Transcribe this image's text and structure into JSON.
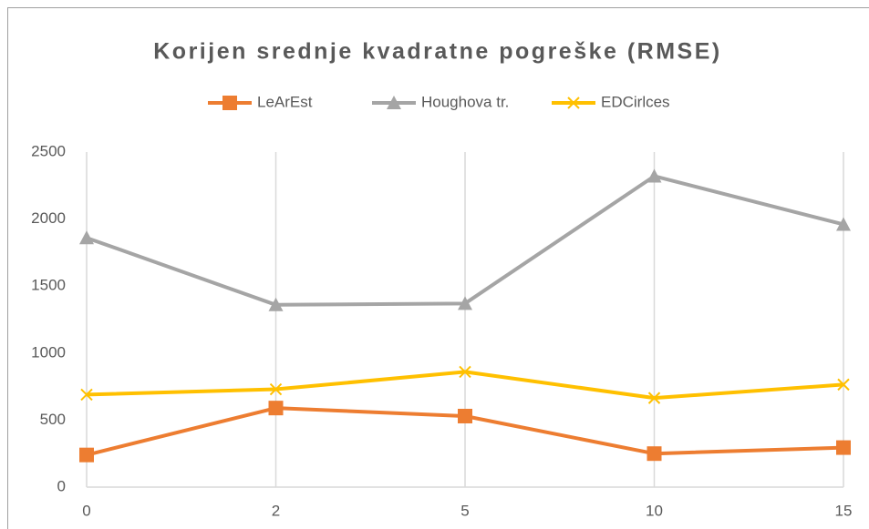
{
  "chart_data": {
    "type": "line",
    "title": "Korijen srednje kvadratne pogreške (RMSE)",
    "categories": [
      "0",
      "2",
      "5",
      "10",
      "15"
    ],
    "series": [
      {
        "name": "LeArEst",
        "color": "#ed7d31",
        "marker": "square",
        "values": [
          240,
          590,
          530,
          250,
          295
        ]
      },
      {
        "name": "Houghova tr.",
        "color": "#a5a5a5",
        "marker": "triangle",
        "values": [
          1860,
          1360,
          1370,
          2320,
          1960
        ]
      },
      {
        "name": "EDCirlces",
        "color": "#ffc000",
        "marker": "x",
        "values": [
          690,
          730,
          860,
          665,
          765
        ]
      }
    ],
    "ylim": [
      0,
      2500
    ],
    "yticks": [
      0,
      500,
      1000,
      1500,
      2000,
      2500
    ],
    "grid": true,
    "legend": "top"
  }
}
